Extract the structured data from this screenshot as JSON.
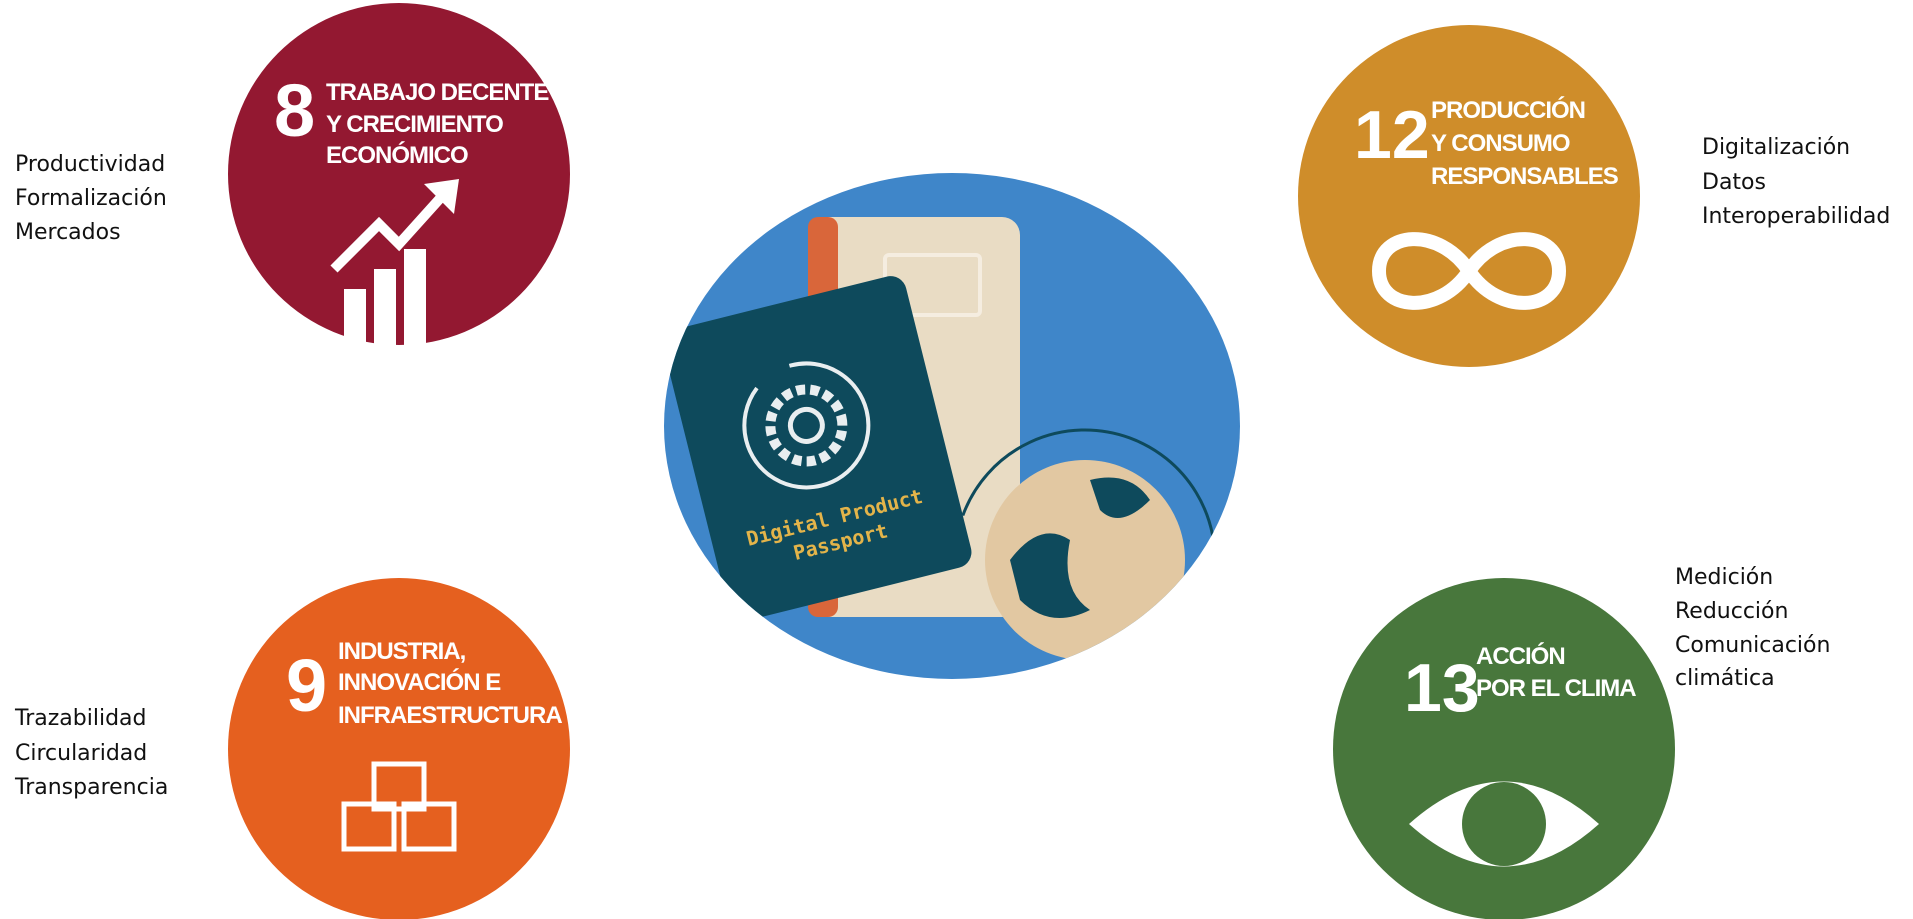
{
  "goals": [
    {
      "number": "8",
      "title": [
        "TRABAJO DECENTE",
        "Y CRECIMIENTO",
        "ECONÓMICO"
      ],
      "keywords": [
        "Productividad",
        "Formalización",
        "Mercados"
      ]
    },
    {
      "number": "12",
      "title": [
        "PRODUCCIÓN",
        "Y CONSUMO",
        "RESPONSABLES"
      ],
      "keywords": [
        "Digitalización",
        "Datos",
        "Interoperabilidad"
      ]
    },
    {
      "number": "9",
      "title": [
        "INDUSTRIA,",
        "INNOVACIÓN E",
        "INFRAESTRUCTURA"
      ],
      "keywords": [
        "Trazabilidad",
        "Circularidad",
        "Transparencia"
      ]
    },
    {
      "number": "13",
      "title": [
        "ACCIÓN",
        "POR EL CLIMA"
      ],
      "keywords": [
        "Medición",
        "Reducción",
        "Comunicación",
        "climática"
      ]
    }
  ],
  "center": {
    "label": [
      "Digital Product",
      "Passport"
    ]
  }
}
